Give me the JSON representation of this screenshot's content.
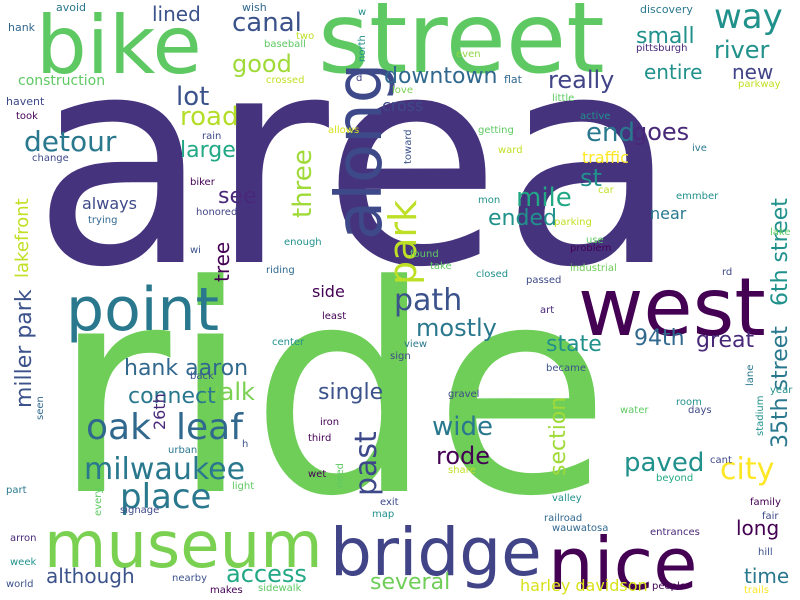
{
  "palette": {
    "background": "#ffffff",
    "colors": [
      "#440154",
      "#3b528b",
      "#21918c",
      "#5ec962",
      "#fde725"
    ]
  },
  "words": [
    {
      "text": "area",
      "color": "#46337e"
    },
    {
      "text": "ride",
      "color": "#6ece58"
    },
    {
      "text": "street",
      "color": "#5ec962"
    },
    {
      "text": "bike",
      "color": "#5ec962"
    },
    {
      "text": "point",
      "color": "#2a788e"
    },
    {
      "text": "west",
      "color": "#440154"
    },
    {
      "text": "along",
      "color": "#3e4989"
    },
    {
      "text": "museum",
      "color": "#7ad151"
    },
    {
      "text": "bridge",
      "color": "#414487"
    },
    {
      "text": "nice",
      "color": "#440154"
    },
    {
      "text": "park",
      "color": "#bddf26"
    },
    {
      "text": "milwaukee",
      "color": "#2a788e"
    },
    {
      "text": "leaf",
      "color": "#31688e"
    },
    {
      "text": "oak",
      "color": "#31688e"
    },
    {
      "text": "place",
      "color": "#2a788e"
    },
    {
      "text": "hank aaron",
      "color": "#31688e"
    },
    {
      "text": "path",
      "color": "#3b528b"
    },
    {
      "text": "mile",
      "color": "#22a884"
    },
    {
      "text": "past",
      "color": "#3e4989"
    },
    {
      "text": "city",
      "color": "#fde725"
    },
    {
      "text": "paved",
      "color": "#21918c"
    },
    {
      "text": "canal",
      "color": "#3b528b"
    },
    {
      "text": "way",
      "color": "#21918c"
    },
    {
      "text": "detour",
      "color": "#2a788e"
    },
    {
      "text": "road",
      "color": "#b5de2b"
    },
    {
      "text": "lot",
      "color": "#3b528b"
    },
    {
      "text": "large",
      "color": "#22a884"
    },
    {
      "text": "downtown",
      "color": "#31688e"
    },
    {
      "text": "really",
      "color": "#414487"
    },
    {
      "text": "river",
      "color": "#21918c"
    },
    {
      "text": "small",
      "color": "#21918c"
    },
    {
      "text": "good",
      "color": "#a0da39"
    },
    {
      "text": "end",
      "color": "#2a788e"
    },
    {
      "text": "goes",
      "color": "#482878"
    },
    {
      "text": "st",
      "color": "#21918c"
    },
    {
      "text": "entire",
      "color": "#21918c"
    },
    {
      "text": "new",
      "color": "#414487"
    },
    {
      "text": "three",
      "color": "#a0da39"
    },
    {
      "text": "ended",
      "color": "#21918c"
    },
    {
      "text": "mostly",
      "color": "#2a788e"
    },
    {
      "text": "state",
      "color": "#21918c"
    },
    {
      "text": "94th",
      "color": "#31688e"
    },
    {
      "text": "great",
      "color": "#482878"
    },
    {
      "text": "35th street",
      "color": "#2a788e"
    },
    {
      "text": "6th street",
      "color": "#21918c"
    },
    {
      "text": "miller park",
      "color": "#3b528b"
    },
    {
      "text": "walk",
      "color": "#7ad151"
    },
    {
      "text": "connect",
      "color": "#2a788e"
    },
    {
      "text": "wide",
      "color": "#2a788e"
    },
    {
      "text": "rode",
      "color": "#440154"
    },
    {
      "text": "single",
      "color": "#3b528b"
    },
    {
      "text": "section",
      "color": "#a0da39"
    },
    {
      "text": "long",
      "color": "#440154"
    },
    {
      "text": "time",
      "color": "#2a788e"
    },
    {
      "text": "access",
      "color": "#22a884"
    },
    {
      "text": "although",
      "color": "#3b528b"
    },
    {
      "text": "several",
      "color": "#6ece58"
    },
    {
      "text": "harley davidson",
      "color": "#d8e219"
    },
    {
      "text": "lakefront",
      "color": "#c2df23"
    },
    {
      "text": "tree",
      "color": "#440154"
    },
    {
      "text": "see",
      "color": "#482878"
    },
    {
      "text": "always",
      "color": "#3e4989"
    },
    {
      "text": "lined",
      "color": "#3b528b"
    },
    {
      "text": "26th",
      "color": "#482878"
    },
    {
      "text": "side",
      "color": "#440154"
    },
    {
      "text": "cross",
      "color": "#3e4989"
    },
    {
      "text": "near",
      "color": "#2a788e"
    },
    {
      "text": "traffic",
      "color": "#fde725"
    },
    {
      "text": "construction",
      "color": "#5ec962"
    },
    {
      "text": "avoid",
      "color": "#2a788e"
    },
    {
      "text": "wish",
      "color": "#31688e"
    },
    {
      "text": "discovery",
      "color": "#2a788e"
    },
    {
      "text": "hank",
      "color": "#31688e"
    },
    {
      "text": "two",
      "color": "#bddf26"
    },
    {
      "text": "baseball",
      "color": "#5ec962"
    },
    {
      "text": "north",
      "color": "#21918c"
    },
    {
      "text": "w",
      "color": "#21918c"
    },
    {
      "text": "even",
      "color": "#8fd744"
    },
    {
      "text": "pittsburgh",
      "color": "#482878"
    },
    {
      "text": "crossed",
      "color": "#c2df23"
    },
    {
      "text": "flat",
      "color": "#31688e"
    },
    {
      "text": "d",
      "color": "#414487"
    },
    {
      "text": "parkway",
      "color": "#c2df23"
    },
    {
      "text": "havent",
      "color": "#3e4989"
    },
    {
      "text": "love",
      "color": "#7ad151"
    },
    {
      "text": "little",
      "color": "#5ec962"
    },
    {
      "text": "took",
      "color": "#440154"
    },
    {
      "text": "active",
      "color": "#21918c"
    },
    {
      "text": "rain",
      "color": "#3e4989"
    },
    {
      "text": "allows",
      "color": "#d8e219"
    },
    {
      "text": "getting",
      "color": "#5ec962"
    },
    {
      "text": "change",
      "color": "#3e4989"
    },
    {
      "text": "toward",
      "color": "#3b528b"
    },
    {
      "text": "ward",
      "color": "#c2df23"
    },
    {
      "text": "ive",
      "color": "#2a788e"
    },
    {
      "text": "biker",
      "color": "#440154"
    },
    {
      "text": "car",
      "color": "#c2df23"
    },
    {
      "text": "mon",
      "color": "#21918c"
    },
    {
      "text": "emmber",
      "color": "#21918c"
    },
    {
      "text": "honored",
      "color": "#414487"
    },
    {
      "text": "trying",
      "color": "#31688e"
    },
    {
      "text": "parking",
      "color": "#c2df23"
    },
    {
      "text": "lake",
      "color": "#5ec962"
    },
    {
      "text": "wi",
      "color": "#3b528b"
    },
    {
      "text": "enough",
      "color": "#21918c"
    },
    {
      "text": "use",
      "color": "#5ec962"
    },
    {
      "text": "found",
      "color": "#5ec962"
    },
    {
      "text": "problem",
      "color": "#440154"
    },
    {
      "text": "take",
      "color": "#5ec962"
    },
    {
      "text": "industrial",
      "color": "#6ece58"
    },
    {
      "text": "riding",
      "color": "#31688e"
    },
    {
      "text": "closed",
      "color": "#21918c"
    },
    {
      "text": "passed",
      "color": "#3e4989"
    },
    {
      "text": "rd",
      "color": "#3e4989"
    },
    {
      "text": "least",
      "color": "#440154"
    },
    {
      "text": "art",
      "color": "#482878"
    },
    {
      "text": "center",
      "color": "#21918c"
    },
    {
      "text": "view",
      "color": "#2a788e"
    },
    {
      "text": "sign",
      "color": "#3e4989"
    },
    {
      "text": "became",
      "color": "#3b528b"
    },
    {
      "text": "back",
      "color": "#3b528b"
    },
    {
      "text": "lane",
      "color": "#2a788e"
    },
    {
      "text": "year",
      "color": "#21918c"
    },
    {
      "text": "gravel",
      "color": "#3e4989"
    },
    {
      "text": "room",
      "color": "#21918c"
    },
    {
      "text": "seen",
      "color": "#31688e"
    },
    {
      "text": "iron",
      "color": "#440154"
    },
    {
      "text": "water",
      "color": "#5ec962"
    },
    {
      "text": "days",
      "color": "#3e4989"
    },
    {
      "text": "stadium",
      "color": "#21918c"
    },
    {
      "text": "third",
      "color": "#440154"
    },
    {
      "text": "h",
      "color": "#3b528b"
    },
    {
      "text": "urban",
      "color": "#2a788e"
    },
    {
      "text": "need",
      "color": "#5ec962"
    },
    {
      "text": "wet",
      "color": "#440154"
    },
    {
      "text": "share",
      "color": "#c2df23"
    },
    {
      "text": "cant",
      "color": "#3e4989"
    },
    {
      "text": "beyond",
      "color": "#22a884"
    },
    {
      "text": "part",
      "color": "#2a788e"
    },
    {
      "text": "every",
      "color": "#5ec962"
    },
    {
      "text": "light",
      "color": "#5ec962"
    },
    {
      "text": "exit",
      "color": "#3e4989"
    },
    {
      "text": "valley",
      "color": "#21918c"
    },
    {
      "text": "family",
      "color": "#440154"
    },
    {
      "text": "fair",
      "color": "#3e4989"
    },
    {
      "text": "signage",
      "color": "#3e4989"
    },
    {
      "text": "map",
      "color": "#21918c"
    },
    {
      "text": "railroad",
      "color": "#31688e"
    },
    {
      "text": "wauwatosa",
      "color": "#31688e"
    },
    {
      "text": "entrances",
      "color": "#482878"
    },
    {
      "text": "hill",
      "color": "#3b528b"
    },
    {
      "text": "arron",
      "color": "#482878"
    },
    {
      "text": "week",
      "color": "#21918c"
    },
    {
      "text": "nearby",
      "color": "#3b528b"
    },
    {
      "text": "world",
      "color": "#3b528b"
    },
    {
      "text": "makes",
      "color": "#440154"
    },
    {
      "text": "sidewalk",
      "color": "#5ec962"
    },
    {
      "text": "people",
      "color": "#440154"
    },
    {
      "text": "trails",
      "color": "#fde725"
    }
  ]
}
